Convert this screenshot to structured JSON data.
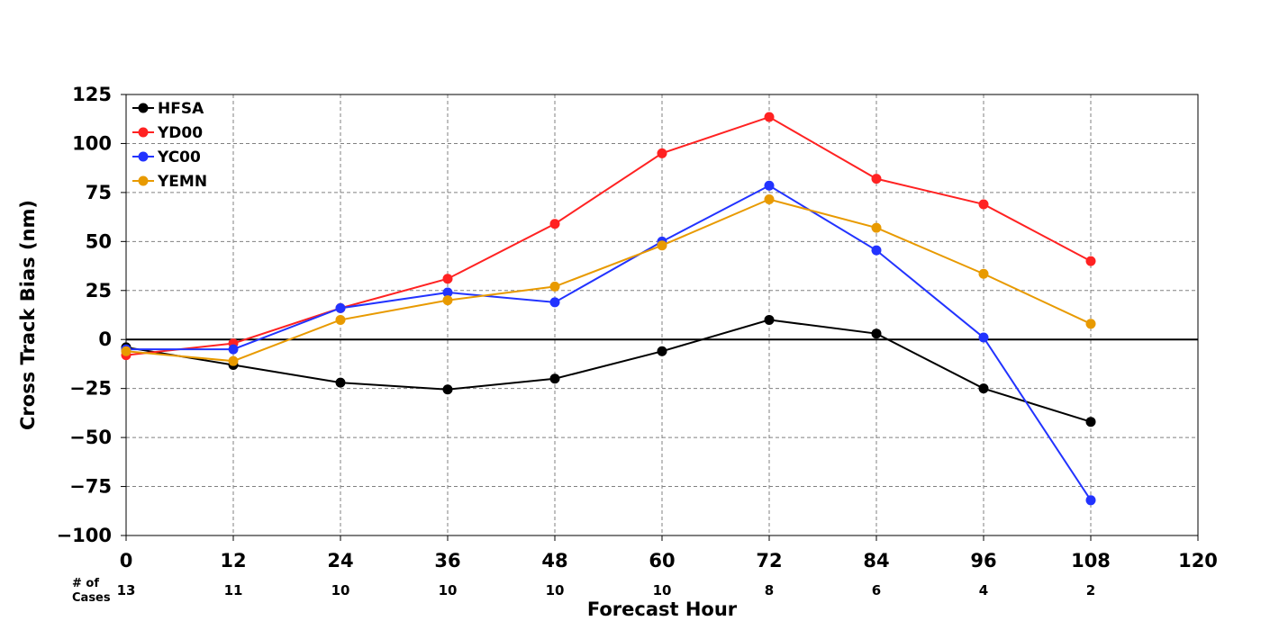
{
  "chart_data": {
    "type": "line",
    "title": "",
    "xlabel": "Forecast Hour",
    "ylabel": "Cross Track Bias (nm)",
    "xlim": [
      0,
      120
    ],
    "ylim": [
      -100,
      125
    ],
    "x_ticks": [
      "0",
      "12",
      "24",
      "36",
      "48",
      "60",
      "72",
      "84",
      "96",
      "108",
      "120"
    ],
    "y_ticks": [
      "125",
      "100",
      "75",
      "50",
      "25",
      "0",
      "−25",
      "−50",
      "−75",
      "−100"
    ],
    "grid": true,
    "grid_style": "dashed",
    "zero_line": true,
    "legend_position": "upper-left",
    "x": [
      0,
      12,
      24,
      36,
      48,
      60,
      72,
      84,
      96,
      108
    ],
    "series": [
      {
        "name": "HFSA",
        "color": "#000000",
        "values": [
          -4,
          -13,
          -22,
          -25.5,
          -20,
          -6,
          10,
          3,
          -25,
          -42
        ]
      },
      {
        "name": "YD00",
        "color": "#ff2222",
        "values": [
          -8,
          -2,
          16,
          31,
          59,
          95,
          113.5,
          82,
          69,
          40
        ]
      },
      {
        "name": "YC00",
        "color": "#2233ff",
        "values": [
          -5,
          -5,
          16,
          24,
          19,
          50,
          78.5,
          45.5,
          1,
          -82
        ]
      },
      {
        "name": "YEMN",
        "color": "#e89a00",
        "values": [
          -6,
          -11,
          10,
          20,
          27,
          48,
          71.5,
          57,
          33.5,
          8
        ]
      }
    ],
    "cases": {
      "label_line1": "# of",
      "label_line2": "Cases",
      "values": [
        "13",
        "11",
        "10",
        "10",
        "10",
        "10",
        "8",
        "6",
        "4",
        "2"
      ]
    }
  }
}
